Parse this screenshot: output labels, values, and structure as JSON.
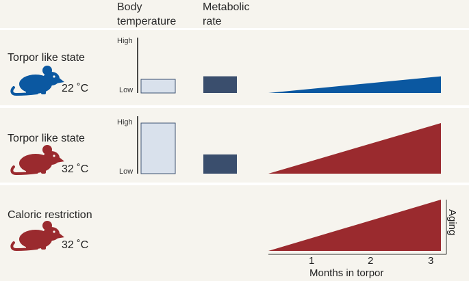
{
  "colors": {
    "background": "#f6f4ee",
    "separator": "#ffffff",
    "blue": "#0b58a1",
    "red": "#9a2a2e",
    "bar_light_fill": "#d9e1ec",
    "bar_light_stroke": "#3d5272",
    "bar_dark": "#3a4e6d"
  },
  "headers": {
    "body_temp_line1": "Body",
    "body_temp_line2": "temperature",
    "metabolic_line1": "Metabolic",
    "metabolic_line2": "rate"
  },
  "rows": [
    {
      "title": "Torpor like state",
      "temperature": "22 ˚C",
      "mouse_icon": "mouse-icon",
      "mouse_color": "blue",
      "body_temp_high_label": "High",
      "body_temp_low_label": "Low",
      "body_temp_level": 0.27,
      "metabolic_level": 0.33,
      "aging_end_level": 0.33
    },
    {
      "title": "Torpor like state",
      "temperature": "32 ˚C",
      "mouse_icon": "mouse-icon",
      "mouse_color": "red",
      "body_temp_high_label": "High",
      "body_temp_low_label": "Low",
      "body_temp_level": 1.0,
      "metabolic_level": 0.38,
      "aging_end_level": 1.0
    },
    {
      "title": "Caloric restriction",
      "temperature": "32 ˚C",
      "mouse_icon": "mouse-icon",
      "mouse_color": "red",
      "aging_end_level": 1.0
    }
  ],
  "axis": {
    "ticks": [
      "1",
      "2",
      "3"
    ],
    "title": "Months in torpor",
    "aging_label": "Aging"
  }
}
